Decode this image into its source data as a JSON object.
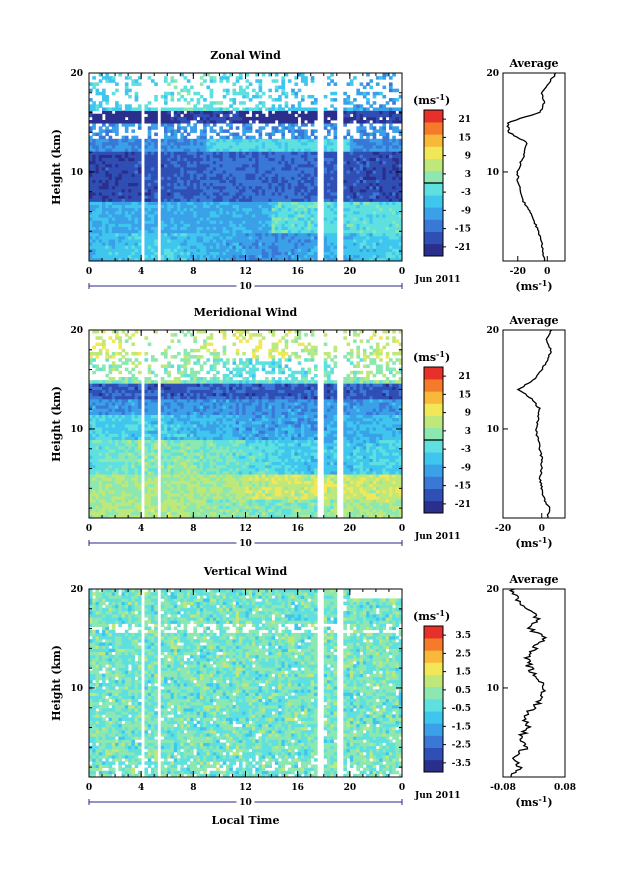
{
  "chart_data": [
    {
      "type": "heatmap",
      "title": "Zonal Wind",
      "ylabel": "Height (km)",
      "xlabel": "",
      "y_ticks": [
        "20",
        "10"
      ],
      "x_ticks": [
        "0",
        "4",
        "8",
        "12",
        "16",
        "20",
        "0"
      ],
      "date_day": "10",
      "date_label": "Jun 2011",
      "xlim": [
        0,
        24
      ],
      "ylim": [
        1,
        20
      ],
      "colorbar": {
        "unit": "(ms",
        "unit_sup": "-1",
        "unit_close": ")",
        "ticks": [
          "21",
          "15",
          "9",
          "3",
          "-3",
          "-9",
          "-15",
          "-21"
        ],
        "range": [
          -24,
          24
        ],
        "colors": [
          "#2b2f8c",
          "#2f4fb5",
          "#3a78d8",
          "#3aa0e8",
          "#3fc6ee",
          "#5fe0e0",
          "#8ce8b0",
          "#bfe87a",
          "#f2e857",
          "#f8b83a",
          "#f57a2a",
          "#e8302a"
        ],
        "marker": "0"
      },
      "profile": {
        "title": "Average",
        "xlim": [
          -30,
          12
        ],
        "x_ticks": [
          "-20",
          "0"
        ],
        "y_ticks": [
          "20",
          "10"
        ],
        "xlabel": "(ms",
        "xlabel_sup": "-1",
        "xlabel_close": ")",
        "y": [
          1,
          2,
          3,
          4,
          5,
          6,
          7,
          8,
          9,
          10,
          11,
          12,
          13,
          14,
          15,
          16,
          17,
          18,
          19,
          20
        ],
        "values": [
          -2,
          -3,
          -4,
          -6,
          -9,
          -12,
          -16,
          -18,
          -20,
          -20,
          -18,
          -15,
          -14,
          -26,
          -27,
          -5,
          -2,
          -4,
          1,
          6
        ]
      }
    },
    {
      "type": "heatmap",
      "title": "Meridional Wind",
      "ylabel": "Height (km)",
      "xlabel": "",
      "y_ticks": [
        "20",
        "10"
      ],
      "x_ticks": [
        "0",
        "4",
        "8",
        "12",
        "16",
        "20",
        "0"
      ],
      "date_day": "10",
      "date_label": "Jun 2011",
      "xlim": [
        0,
        24
      ],
      "ylim": [
        1,
        20
      ],
      "colorbar": {
        "unit": "(ms",
        "unit_sup": "-1",
        "unit_close": ")",
        "ticks": [
          "21",
          "15",
          "9",
          "3",
          "-3",
          "-9",
          "-15",
          "-21"
        ],
        "range": [
          -24,
          24
        ],
        "colors": [
          "#2b2f8c",
          "#2f4fb5",
          "#3a78d8",
          "#3aa0e8",
          "#3fc6ee",
          "#5fe0e0",
          "#8ce8b0",
          "#bfe87a",
          "#f2e857",
          "#f8b83a",
          "#f57a2a",
          "#e8302a"
        ],
        "marker": "0"
      },
      "profile": {
        "title": "Average",
        "xlim": [
          -20,
          12
        ],
        "x_ticks": [
          "-20",
          "0"
        ],
        "y_ticks": [
          "20",
          "10"
        ],
        "xlabel": "(ms",
        "xlabel_sup": "-1",
        "xlabel_close": ")",
        "y": [
          1,
          2,
          3,
          4,
          5,
          6,
          7,
          8,
          9,
          10,
          11,
          12,
          13,
          14,
          15,
          16,
          17,
          18,
          19,
          20
        ],
        "values": [
          3,
          4,
          1,
          0,
          -1,
          0,
          0,
          -1,
          -2,
          -3,
          -2,
          -1,
          -5,
          -12,
          -4,
          0,
          3,
          5,
          2,
          5
        ]
      }
    },
    {
      "type": "heatmap",
      "title": "Vertical Wind",
      "ylabel": "Height (km)",
      "xlabel": "Local Time",
      "y_ticks": [
        "20",
        "10"
      ],
      "x_ticks": [
        "0",
        "4",
        "8",
        "12",
        "16",
        "20",
        "0"
      ],
      "date_day": "10",
      "date_label": "Jun 2011",
      "xlim": [
        0,
        24
      ],
      "ylim": [
        1,
        20
      ],
      "colorbar": {
        "unit": "(ms",
        "unit_sup": "-1",
        "unit_close": ")",
        "ticks": [
          "3.5",
          "2.5",
          "1.5",
          "0.5",
          "-0.5",
          "-1.5",
          "-2.5",
          "-3.5"
        ],
        "range": [
          -4,
          4
        ],
        "colors": [
          "#2b2f8c",
          "#2f4fb5",
          "#3a78d8",
          "#3aa0e8",
          "#3fc6ee",
          "#5fe0e0",
          "#8ce8b0",
          "#bfe87a",
          "#f2e857",
          "#f8b83a",
          "#f57a2a",
          "#e8302a"
        ],
        "marker": ""
      },
      "profile": {
        "title": "Average",
        "xlim": [
          -0.08,
          0.08
        ],
        "x_ticks": [
          "-0.08",
          "0.08"
        ],
        "y_ticks": [
          "20",
          "10"
        ],
        "xlabel": "(ms",
        "xlabel_sup": "-1",
        "xlabel_close": ")",
        "y": [
          1,
          2,
          3,
          4,
          5,
          6,
          7,
          8,
          9,
          10,
          11,
          12,
          13,
          14,
          15,
          16,
          17,
          18,
          19,
          20
        ],
        "values": [
          -0.06,
          -0.04,
          -0.05,
          -0.02,
          -0.04,
          -0.01,
          -0.03,
          0.0,
          0.02,
          0.03,
          0.0,
          -0.01,
          -0.02,
          0.0,
          0.03,
          -0.01,
          0.01,
          -0.02,
          -0.04,
          -0.06
        ]
      }
    }
  ]
}
